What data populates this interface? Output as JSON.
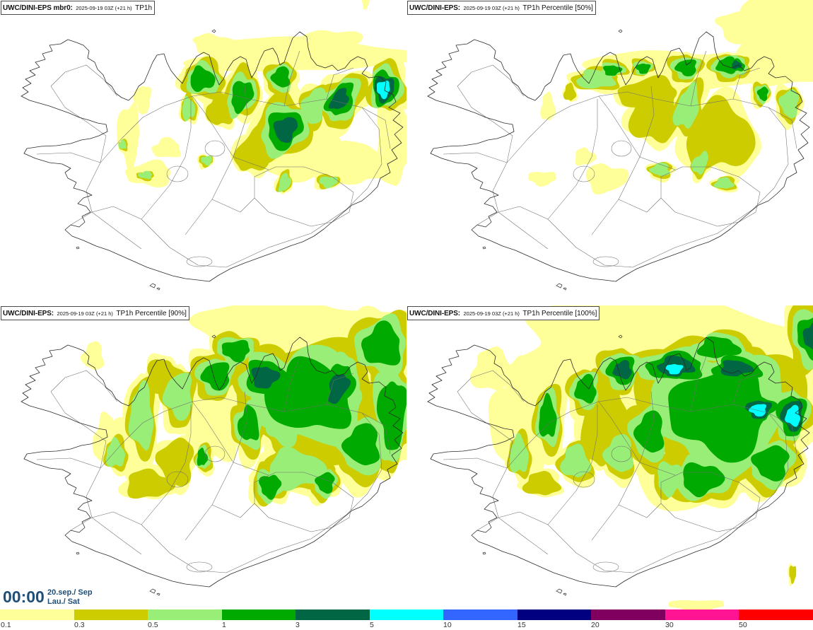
{
  "panels": [
    {
      "model": "UWC/DINI-EPS mbr0:",
      "run": "2025-09-19 03Z (+21 h)",
      "field": "TP1h"
    },
    {
      "model": "UWC/DINI-EPS:",
      "run": "2025-09-19 03Z (+21 h)",
      "field": "TP1h Percentile [50%]"
    },
    {
      "model": "UWC/DINI-EPS:",
      "run": "2025-09-19 03Z (+21 h)",
      "field": "TP1h Percentile [90%]"
    },
    {
      "model": "UWC/DINI-EPS:",
      "run": "2025-09-19 03Z (+21 h)",
      "field": "TP1h Percentile [100%]"
    }
  ],
  "valid_time": {
    "clock": "00:00",
    "date": "20.sep./ Sep",
    "weekday": "Lau./ Sat",
    "color": "#1f4e79"
  },
  "legend": {
    "labels": [
      "0.1",
      "0.3",
      "0.5",
      "1",
      "3",
      "5",
      "10",
      "15",
      "20",
      "30",
      "50"
    ],
    "colors": [
      "#ffff99",
      "#cccc00",
      "#99ee77",
      "#00aa00",
      "#006644",
      "#00ffff",
      "#3366ff",
      "#000080",
      "#800060",
      "#ff1493",
      "#ff0000"
    ]
  }
}
